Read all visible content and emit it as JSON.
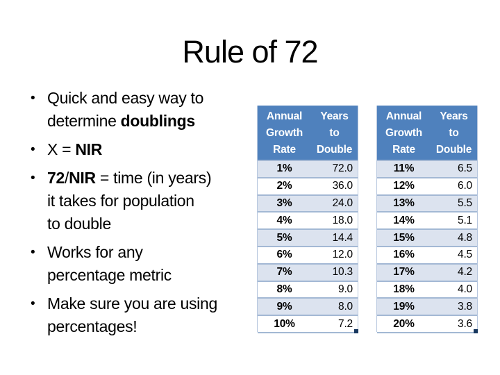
{
  "slide": {
    "title": "Rule of 72",
    "background": "#FFFFFF"
  },
  "bullets": [
    {
      "lines": [
        [
          {
            "text": "Quick and easy way to"
          }
        ],
        [
          {
            "text": "determine "
          },
          {
            "text": "doublings",
            "bold": true
          }
        ]
      ]
    },
    {
      "lines": [
        [
          {
            "text": "X = "
          },
          {
            "text": "NIR",
            "bold": true
          }
        ]
      ]
    },
    {
      "lines": [
        [
          {
            "text": "72",
            "bold": true
          },
          {
            "text": "/"
          },
          {
            "text": "NIR",
            "bold": true
          },
          {
            "text": " = time (in years)"
          }
        ],
        [
          {
            "text": "it takes for population"
          }
        ],
        [
          {
            "text": "to double"
          }
        ]
      ]
    },
    {
      "lines": [
        [
          {
            "text": "Works for any"
          }
        ],
        [
          {
            "text": "percentage metric"
          }
        ]
      ]
    },
    {
      "lines": [
        [
          {
            "text": "Make sure you are using"
          }
        ],
        [
          {
            "text": "percentages!"
          }
        ]
      ]
    }
  ],
  "chart_data": [
    {
      "type": "table",
      "columns": [
        [
          "Annual",
          "Growth",
          "Rate"
        ],
        [
          "Years",
          "to",
          "Double"
        ]
      ],
      "rows": [
        [
          "1%",
          "72.0"
        ],
        [
          "2%",
          "36.0"
        ],
        [
          "3%",
          "24.0"
        ],
        [
          "4%",
          "18.0"
        ],
        [
          "5%",
          "14.4"
        ],
        [
          "6%",
          "12.0"
        ],
        [
          "7%",
          "10.3"
        ],
        [
          "8%",
          "9.0"
        ],
        [
          "9%",
          "8.0"
        ],
        [
          "10%",
          "7.2"
        ]
      ]
    },
    {
      "type": "table",
      "columns": [
        [
          "Annual",
          "Growth",
          "Rate"
        ],
        [
          "Years",
          "to",
          "Double"
        ]
      ],
      "rows": [
        [
          "11%",
          "6.5"
        ],
        [
          "12%",
          "6.0"
        ],
        [
          "13%",
          "5.5"
        ],
        [
          "14%",
          "5.1"
        ],
        [
          "15%",
          "4.8"
        ],
        [
          "16%",
          "4.5"
        ],
        [
          "17%",
          "4.2"
        ],
        [
          "18%",
          "4.0"
        ],
        [
          "19%",
          "3.8"
        ],
        [
          "20%",
          "3.6"
        ]
      ]
    }
  ],
  "colors": {
    "header_bg": "#4F81BD",
    "header_text": "#FFFFFF",
    "banded_row": "#DCE3EF",
    "row_border": "#A3B8D4",
    "corner_marker": "#17375E",
    "text": "#000000"
  }
}
